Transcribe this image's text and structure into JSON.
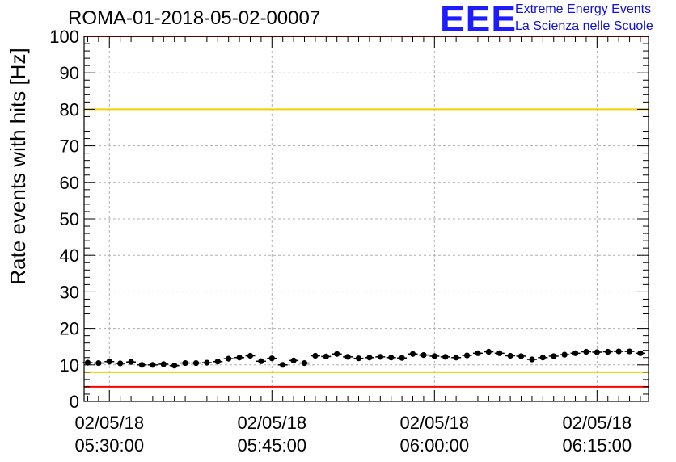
{
  "header": {
    "run_title": "ROMA-01-2018-05-02-00007",
    "logo_text": "EEE",
    "logo_line1": "Extreme Energy Events",
    "logo_line2": "La Scienza nelle Scuole"
  },
  "chart_data": {
    "type": "scatter",
    "title": "ROMA-01-2018-05-02-00007",
    "ylabel": "Rate events with hits [Hz]",
    "xlabel": "",
    "ylim": [
      0,
      100
    ],
    "yticks": [
      0,
      10,
      20,
      30,
      40,
      50,
      60,
      70,
      80,
      90,
      100
    ],
    "xlim": [
      "02/05/18 05:27:40",
      "02/05/18 06:19:45"
    ],
    "xticks": [
      {
        "time": "05:30:00",
        "label_date": "02/05/18",
        "label_time": "05:30:00"
      },
      {
        "time": "05:45:00",
        "label_date": "02/05/18",
        "label_time": "05:45:00"
      },
      {
        "time": "06:00:00",
        "label_date": "02/05/18",
        "label_time": "06:00:00"
      },
      {
        "time": "06:15:00",
        "label_date": "02/05/18",
        "label_time": "06:15:00"
      }
    ],
    "grid": true,
    "reference_lines": [
      {
        "y": 100,
        "color": "#ff0000"
      },
      {
        "y": 80,
        "color": "#f0d000"
      },
      {
        "y": 8,
        "color": "#f0d000"
      },
      {
        "y": 4,
        "color": "#ff0000"
      }
    ],
    "marker_color": "#000000",
    "series": [
      {
        "x": [
          "05:28:00",
          "05:29:00",
          "05:30:00",
          "05:31:00",
          "05:32:00",
          "05:33:00",
          "05:34:00",
          "05:35:00",
          "05:36:00",
          "05:37:00",
          "05:38:00",
          "05:39:00",
          "05:40:00",
          "05:41:00",
          "05:42:00",
          "05:43:00",
          "05:44:00",
          "05:45:00",
          "05:46:00",
          "05:47:00",
          "05:48:00",
          "05:49:00",
          "05:50:00",
          "05:51:00",
          "05:52:00",
          "05:53:00",
          "05:54:00",
          "05:55:00",
          "05:56:00",
          "05:57:00",
          "05:58:00",
          "05:59:00",
          "06:00:00",
          "06:01:00",
          "06:02:00",
          "06:03:00",
          "06:04:00",
          "06:05:00",
          "06:06:00",
          "06:07:00",
          "06:08:00",
          "06:09:00",
          "06:10:00",
          "06:11:00",
          "06:12:00",
          "06:13:00",
          "06:14:00",
          "06:15:00",
          "06:16:00",
          "06:17:00",
          "06:18:00",
          "06:19:00"
        ],
        "y": [
          10.6,
          10.5,
          10.9,
          10.4,
          10.8,
          10.0,
          10.0,
          10.2,
          9.8,
          10.5,
          10.5,
          10.6,
          10.9,
          11.7,
          12.0,
          12.5,
          11.0,
          11.8,
          10.0,
          11.2,
          10.5,
          12.5,
          12.3,
          13.0,
          12.2,
          11.8,
          12.0,
          12.2,
          12.0,
          11.9,
          13.0,
          12.7,
          12.4,
          12.2,
          12.0,
          12.6,
          13.2,
          13.6,
          13.2,
          12.5,
          12.4,
          11.5,
          12.0,
          12.4,
          12.8,
          13.2,
          13.6,
          13.5,
          13.6,
          13.7,
          13.7,
          13.2
        ],
        "yerr": 0.5
      }
    ]
  }
}
